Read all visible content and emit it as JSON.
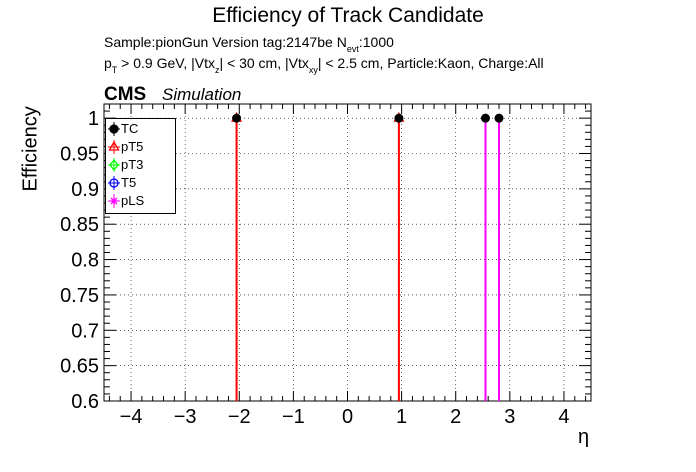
{
  "header": {
    "title": "Efficiency of Track Candidate",
    "sample_line_prefix": "Sample:pionGun   Version tag:2147be  N",
    "sample_line_sub": "evt",
    "sample_line_suffix": ":1000",
    "cuts_p": "p",
    "cuts_p_sub": "T",
    "cuts_a": " > 0.9 GeV, |Vtx",
    "cuts_z_sub": "z",
    "cuts_b": "| < 30 cm, |Vtx",
    "cuts_xy_sub": "xy",
    "cuts_c": "| < 2.5 cm, Particle:Kaon, Charge:All",
    "cms": "CMS",
    "simulation": "Simulation"
  },
  "chart_data": {
    "type": "scatter",
    "xlabel": "η",
    "ylabel": "Efficiency",
    "xlim": [
      -4.5,
      4.5
    ],
    "ylim": [
      0.6,
      1.02
    ],
    "grid": true,
    "legend_position": "top-left",
    "x_ticks": [
      "−4",
      "−3",
      "−2",
      "−1",
      "0",
      "1",
      "2",
      "3",
      "4"
    ],
    "x_tick_values": [
      -4,
      -3,
      -2,
      -1,
      0,
      1,
      2,
      3,
      4
    ],
    "y_ticks": [
      "0.6",
      "0.65",
      "0.7",
      "0.75",
      "0.8",
      "0.85",
      "0.9",
      "0.95",
      "1"
    ],
    "y_tick_values": [
      0.6,
      0.65,
      0.7,
      0.75,
      0.8,
      0.85,
      0.9,
      0.95,
      1.0
    ],
    "series": [
      {
        "name": "TC",
        "color": "#000000",
        "marker": "filled-circle",
        "x": [
          -2.05,
          0.95,
          2.55,
          2.8
        ],
        "y": [
          1,
          1,
          1,
          1
        ]
      },
      {
        "name": "pT5",
        "color": "#ff0000",
        "marker": "open-triangle",
        "x": [
          -2.05,
          0.95
        ],
        "y": [
          1,
          1
        ]
      },
      {
        "name": "pT3",
        "color": "#00ff00",
        "marker": "open-diamond",
        "x": [],
        "y": []
      },
      {
        "name": "T5",
        "color": "#0000ff",
        "marker": "open-circle",
        "x": [],
        "y": []
      },
      {
        "name": "pLS",
        "color": "#ff00ff",
        "marker": "open-star",
        "x": [
          2.55,
          2.8
        ],
        "y": [
          1,
          1
        ]
      }
    ]
  }
}
